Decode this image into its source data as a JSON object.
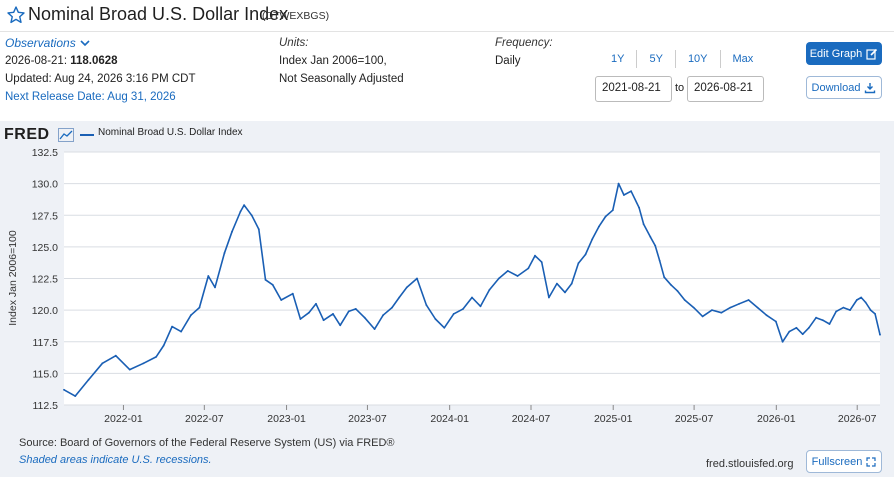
{
  "header": {
    "title": "Nominal Broad U.S. Dollar Index",
    "code": "(DTWEXBGS)"
  },
  "observations": {
    "label": "Observations",
    "date_value": "2026-08-21:",
    "value": "118.0628",
    "updated": "Updated: Aug 24, 2026 3:16 PM CDT",
    "next_release": "Next Release Date: Aug 31, 2026"
  },
  "units": {
    "label": "Units:",
    "line1": "Index Jan 2006=100,",
    "line2": "Not Seasonally Adjusted"
  },
  "frequency": {
    "label": "Frequency:",
    "value": "Daily"
  },
  "range_buttons": [
    "1Y",
    "5Y",
    "10Y",
    "Max"
  ],
  "date_range": {
    "from": "2021-08-21",
    "to_label": "to",
    "to": "2026-08-21"
  },
  "buttons": {
    "edit": "Edit Graph",
    "download": "Download",
    "fullscreen": "Fullscreen"
  },
  "logo": "FRED",
  "footer": {
    "source": "Source: Board of Governors of the Federal Reserve System (US) via FRED®",
    "shaded": "Shaded areas indicate U.S. recessions.",
    "site": "fred.stlouisfed.org"
  },
  "colors": {
    "line": "#1a5fb4",
    "accent": "#1a6bbf",
    "panel": "#eef1f6"
  },
  "chart_data": {
    "type": "line",
    "title": "",
    "xlabel": "",
    "ylabel": "Index Jan 2006=100",
    "ylim": [
      112.5,
      132.5
    ],
    "yticks": [
      112.5,
      115.0,
      117.5,
      120.0,
      122.5,
      125.0,
      127.5,
      130.0,
      132.5
    ],
    "xticks": [
      "2022-01",
      "2022-07",
      "2023-01",
      "2023-07",
      "2024-01",
      "2024-07",
      "2025-01",
      "2025-07",
      "2026-01",
      "2026-07"
    ],
    "grid": true,
    "legend": "top-left",
    "series": [
      {
        "name": "Nominal Broad U.S. Dollar Index",
        "x": [
          "2021-08-21",
          "2021-09-15",
          "2021-10-15",
          "2021-11-15",
          "2021-12-15",
          "2022-01-15",
          "2022-02-15",
          "2022-03-15",
          "2022-04-01",
          "2022-04-20",
          "2022-05-10",
          "2022-06-01",
          "2022-06-20",
          "2022-07-10",
          "2022-07-25",
          "2022-08-15",
          "2022-09-01",
          "2022-09-20",
          "2022-09-28",
          "2022-10-15",
          "2022-10-31",
          "2022-11-15",
          "2022-12-01",
          "2022-12-20",
          "2023-01-15",
          "2023-02-01",
          "2023-02-20",
          "2023-03-08",
          "2023-03-25",
          "2023-04-15",
          "2023-05-01",
          "2023-05-20",
          "2023-06-05",
          "2023-06-25",
          "2023-07-17",
          "2023-08-05",
          "2023-08-25",
          "2023-09-10",
          "2023-09-27",
          "2023-10-20",
          "2023-11-10",
          "2023-11-30",
          "2023-12-20",
          "2024-01-10",
          "2024-01-31",
          "2024-02-20",
          "2024-03-10",
          "2024-03-30",
          "2024-04-20",
          "2024-05-10",
          "2024-06-01",
          "2024-06-25",
          "2024-07-10",
          "2024-07-25",
          "2024-08-10",
          "2024-08-28",
          "2024-09-15",
          "2024-09-30",
          "2024-10-15",
          "2024-10-31",
          "2024-11-15",
          "2024-11-30",
          "2024-12-15",
          "2024-12-31",
          "2025-01-13",
          "2025-01-25",
          "2025-02-10",
          "2025-02-28",
          "2025-03-10",
          "2025-03-25",
          "2025-04-05",
          "2025-04-15",
          "2025-04-25",
          "2025-05-10",
          "2025-05-25",
          "2025-06-10",
          "2025-06-30",
          "2025-07-20",
          "2025-08-10",
          "2025-08-31",
          "2025-09-20",
          "2025-10-10",
          "2025-10-31",
          "2025-11-20",
          "2025-12-10",
          "2025-12-31",
          "2026-01-15",
          "2026-01-30",
          "2026-02-15",
          "2026-03-01",
          "2026-03-15",
          "2026-03-31",
          "2026-04-15",
          "2026-04-30",
          "2026-05-15",
          "2026-05-31",
          "2026-06-15",
          "2026-06-30",
          "2026-07-10",
          "2026-07-20",
          "2026-07-31",
          "2026-08-10",
          "2026-08-21"
        ],
        "values": [
          113.7,
          113.2,
          114.5,
          115.8,
          116.4,
          115.3,
          115.8,
          116.3,
          117.2,
          118.7,
          118.3,
          119.6,
          120.2,
          122.7,
          121.8,
          124.5,
          126.2,
          127.8,
          128.3,
          127.5,
          126.4,
          122.4,
          122.0,
          120.8,
          121.3,
          119.3,
          119.8,
          120.5,
          119.2,
          119.7,
          118.8,
          119.9,
          120.1,
          119.4,
          118.5,
          119.6,
          120.2,
          121.0,
          121.8,
          122.5,
          120.4,
          119.3,
          118.6,
          119.7,
          120.1,
          121.0,
          120.3,
          121.6,
          122.5,
          123.1,
          122.7,
          123.3,
          124.3,
          123.8,
          121.0,
          122.1,
          121.4,
          122.1,
          123.7,
          124.4,
          125.6,
          126.6,
          127.4,
          127.9,
          130.0,
          129.1,
          129.4,
          128.1,
          126.8,
          125.8,
          125.1,
          123.9,
          122.6,
          122.0,
          121.5,
          120.8,
          120.2,
          119.5,
          120.0,
          119.8,
          120.2,
          120.5,
          120.8,
          120.2,
          119.6,
          119.1,
          117.5,
          118.3,
          118.6,
          118.1,
          118.6,
          119.4,
          119.2,
          118.9,
          119.9,
          120.2,
          120.0,
          120.8,
          121.0,
          120.6,
          120.0,
          119.7,
          118.06
        ]
      }
    ]
  }
}
